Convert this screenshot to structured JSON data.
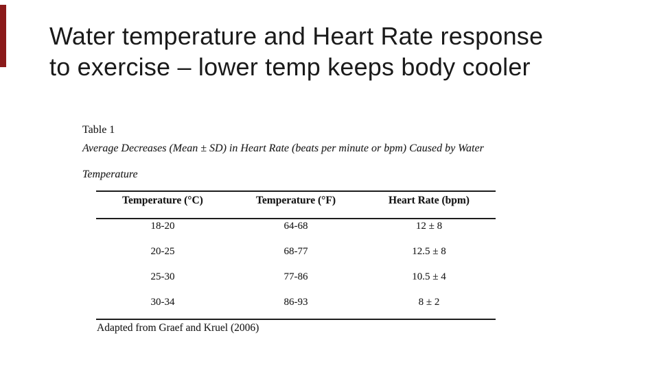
{
  "slide": {
    "title_line1": "Water temperature and Heart Rate response",
    "title_line2": "to exercise – lower temp keeps body cooler",
    "accent_bar_color": "#8b1a1a"
  },
  "figure": {
    "label": "Table 1",
    "caption_line1": "Average Decreases (Mean ± SD) in Heart Rate (beats per minute or bpm) Caused by Water",
    "caption_line2": "Temperature",
    "source_note": "Adapted from Graef and Kruel (2006)"
  },
  "chart_data": {
    "type": "table",
    "title": "Average Decreases (Mean ± SD) in Heart Rate (beats per minute or bpm) Caused by Water Temperature",
    "columns": [
      "Temperature (°C)",
      "Temperature (°F)",
      "Heart Rate (bpm)"
    ],
    "rows": [
      [
        "18-20",
        "64-68",
        "12 ± 8"
      ],
      [
        "20-25",
        "68-77",
        "12.5 ± 8"
      ],
      [
        "25-30",
        "77-86",
        "10.5 ± 4"
      ],
      [
        "30-34",
        "86-93",
        "8 ± 2"
      ]
    ],
    "source": "Adapted from Graef and Kruel (2006)"
  }
}
